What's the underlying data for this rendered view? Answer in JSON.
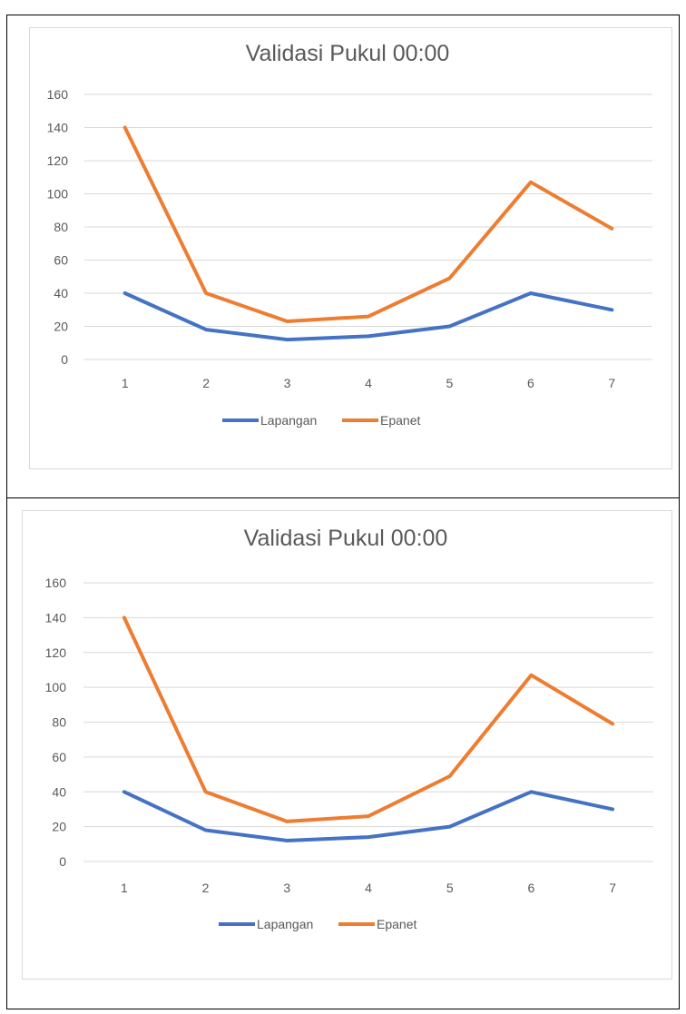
{
  "chart_data": [
    {
      "type": "line",
      "title": "Validasi Pukul 00:00",
      "categories": [
        "1",
        "2",
        "3",
        "4",
        "5",
        "6",
        "7"
      ],
      "ylim": [
        0,
        160
      ],
      "yticks": [
        "0",
        "20",
        "40",
        "60",
        "80",
        "100",
        "120",
        "140",
        "160"
      ],
      "grid": true,
      "legend_position": "bottom",
      "series": [
        {
          "name": "Lapangan",
          "color": "#4472c4",
          "values": [
            40,
            18,
            12,
            14,
            20,
            40,
            30
          ]
        },
        {
          "name": "Epanet",
          "color": "#ed7d31",
          "values": [
            140,
            40,
            23,
            26,
            49,
            107,
            79
          ]
        }
      ]
    },
    {
      "type": "line",
      "title": "Validasi Pukul 00:00",
      "categories": [
        "1",
        "2",
        "3",
        "4",
        "5",
        "6",
        "7"
      ],
      "ylim": [
        0,
        160
      ],
      "yticks": [
        "0",
        "20",
        "40",
        "60",
        "80",
        "100",
        "120",
        "140",
        "160"
      ],
      "grid": true,
      "legend_position": "bottom",
      "series": [
        {
          "name": "Lapangan",
          "color": "#4472c4",
          "values": [
            40,
            18,
            12,
            14,
            20,
            40,
            30
          ]
        },
        {
          "name": "Epanet",
          "color": "#ed7d31",
          "values": [
            140,
            40,
            23,
            26,
            49,
            107,
            79
          ]
        }
      ]
    }
  ]
}
